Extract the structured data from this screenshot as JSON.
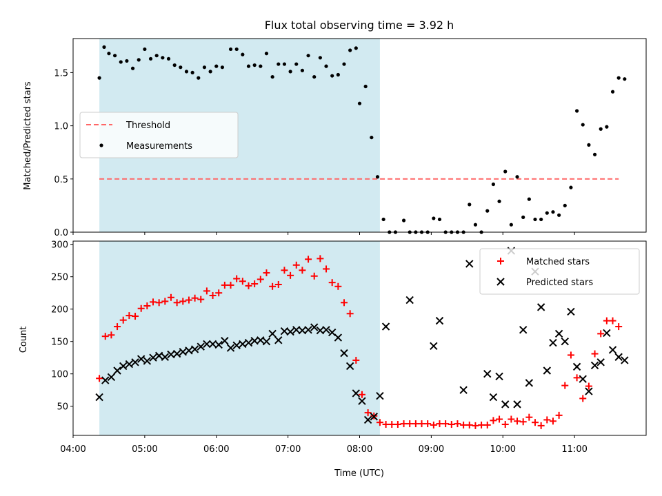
{
  "chart_data": [
    {
      "type": "scatter",
      "title": "Flux total observing time = 3.92 h",
      "ylabel": "Matched/Predicted stars",
      "ylim": [
        0,
        1.82
      ],
      "yticks": [
        "0.0",
        "0.5",
        "1.0",
        "1.5"
      ],
      "xlim": [
        "04:00",
        "12:00"
      ],
      "shaded_interval": [
        "04:22",
        "08:17"
      ],
      "shaded_color": "#add8e6",
      "legend_position": "center-left",
      "threshold": {
        "name": "Threshold",
        "value": 0.5,
        "x_range": [
          "04:22",
          "11:37"
        ],
        "color": "#ff6666",
        "style": "dashed"
      },
      "series": [
        {
          "name": "Measurements",
          "color": "#000000",
          "marker": "dot",
          "points": [
            [
              "04:22",
              1.45
            ],
            [
              "04:26",
              1.74
            ],
            [
              "04:30",
              1.68
            ],
            [
              "04:35",
              1.66
            ],
            [
              "04:40",
              1.6
            ],
            [
              "04:45",
              1.61
            ],
            [
              "04:50",
              1.54
            ],
            [
              "04:55",
              1.62
            ],
            [
              "05:00",
              1.72
            ],
            [
              "05:05",
              1.63
            ],
            [
              "05:10",
              1.66
            ],
            [
              "05:15",
              1.64
            ],
            [
              "05:20",
              1.63
            ],
            [
              "05:25",
              1.57
            ],
            [
              "05:30",
              1.55
            ],
            [
              "05:35",
              1.51
            ],
            [
              "05:40",
              1.5
            ],
            [
              "05:45",
              1.45
            ],
            [
              "05:50",
              1.55
            ],
            [
              "05:55",
              1.51
            ],
            [
              "06:00",
              1.56
            ],
            [
              "06:05",
              1.55
            ],
            [
              "06:12",
              1.72
            ],
            [
              "06:17",
              1.72
            ],
            [
              "06:22",
              1.67
            ],
            [
              "06:27",
              1.56
            ],
            [
              "06:32",
              1.57
            ],
            [
              "06:37",
              1.56
            ],
            [
              "06:42",
              1.68
            ],
            [
              "06:47",
              1.46
            ],
            [
              "06:52",
              1.58
            ],
            [
              "06:57",
              1.58
            ],
            [
              "07:02",
              1.51
            ],
            [
              "07:07",
              1.58
            ],
            [
              "07:12",
              1.52
            ],
            [
              "07:17",
              1.66
            ],
            [
              "07:22",
              1.46
            ],
            [
              "07:27",
              1.64
            ],
            [
              "07:32",
              1.56
            ],
            [
              "07:37",
              1.47
            ],
            [
              "07:42",
              1.48
            ],
            [
              "07:47",
              1.58
            ],
            [
              "07:52",
              1.71
            ],
            [
              "07:57",
              1.73
            ],
            [
              "08:00",
              1.21
            ],
            [
              "08:05",
              1.37
            ],
            [
              "08:10",
              0.89
            ],
            [
              "08:15",
              0.52
            ],
            [
              "08:20",
              0.12
            ],
            [
              "08:25",
              0.0
            ],
            [
              "08:30",
              0.0
            ],
            [
              "08:37",
              0.11
            ],
            [
              "08:42",
              0.0
            ],
            [
              "08:47",
              0.0
            ],
            [
              "08:52",
              0.0
            ],
            [
              "08:57",
              0.0
            ],
            [
              "09:02",
              0.13
            ],
            [
              "09:07",
              0.12
            ],
            [
              "09:12",
              0.0
            ],
            [
              "09:17",
              0.0
            ],
            [
              "09:22",
              0.0
            ],
            [
              "09:27",
              0.0
            ],
            [
              "09:32",
              0.26
            ],
            [
              "09:37",
              0.07
            ],
            [
              "09:42",
              0.0
            ],
            [
              "09:47",
              0.2
            ],
            [
              "09:52",
              0.45
            ],
            [
              "09:57",
              0.29
            ],
            [
              "10:02",
              0.57
            ],
            [
              "10:07",
              0.07
            ],
            [
              "10:12",
              0.52
            ],
            [
              "10:17",
              0.14
            ],
            [
              "10:22",
              0.31
            ],
            [
              "10:27",
              0.12
            ],
            [
              "10:32",
              0.12
            ],
            [
              "10:37",
              0.18
            ],
            [
              "10:42",
              0.19
            ],
            [
              "10:47",
              0.16
            ],
            [
              "10:52",
              0.25
            ],
            [
              "10:57",
              0.42
            ],
            [
              "11:02",
              1.14
            ],
            [
              "11:07",
              1.01
            ],
            [
              "11:12",
              0.82
            ],
            [
              "11:17",
              0.73
            ],
            [
              "11:22",
              0.97
            ],
            [
              "11:27",
              0.99
            ],
            [
              "11:32",
              1.32
            ],
            [
              "11:37",
              1.45
            ],
            [
              "11:42",
              1.44
            ]
          ]
        }
      ]
    },
    {
      "type": "scatter",
      "xlabel": "Time (UTC)",
      "ylabel": "Count",
      "ylim": [
        5,
        305
      ],
      "yticks": [
        "50",
        "100",
        "150",
        "200",
        "250",
        "300"
      ],
      "xlim": [
        "04:00",
        "12:00"
      ],
      "xticks": [
        "04:00",
        "05:00",
        "06:00",
        "07:00",
        "08:00",
        "09:00",
        "10:00",
        "11:00"
      ],
      "shaded_interval": [
        "04:22",
        "08:17"
      ],
      "shaded_color": "#add8e6",
      "legend_position": "upper right",
      "series": [
        {
          "name": "Matched stars",
          "color": "#ff0000",
          "marker": "plus",
          "points": [
            [
              "04:22",
              93
            ],
            [
              "04:27",
              158
            ],
            [
              "04:32",
              160
            ],
            [
              "04:37",
              173
            ],
            [
              "04:42",
              183
            ],
            [
              "04:47",
              190
            ],
            [
              "04:52",
              189
            ],
            [
              "04:57",
              201
            ],
            [
              "05:02",
              205
            ],
            [
              "05:07",
              211
            ],
            [
              "05:12",
              210
            ],
            [
              "05:17",
              212
            ],
            [
              "05:22",
              218
            ],
            [
              "05:27",
              210
            ],
            [
              "05:32",
              212
            ],
            [
              "05:37",
              214
            ],
            [
              "05:42",
              217
            ],
            [
              "05:47",
              215
            ],
            [
              "05:52",
              228
            ],
            [
              "05:57",
              221
            ],
            [
              "06:02",
              225
            ],
            [
              "06:07",
              237
            ],
            [
              "06:12",
              237
            ],
            [
              "06:17",
              247
            ],
            [
              "06:22",
              243
            ],
            [
              "06:27",
              236
            ],
            [
              "06:32",
              239
            ],
            [
              "06:37",
              246
            ],
            [
              "06:42",
              256
            ],
            [
              "06:47",
              235
            ],
            [
              "06:52",
              238
            ],
            [
              "06:57",
              260
            ],
            [
              "07:02",
              252
            ],
            [
              "07:07",
              268
            ],
            [
              "07:12",
              260
            ],
            [
              "07:17",
              277
            ],
            [
              "07:22",
              251
            ],
            [
              "07:27",
              278
            ],
            [
              "07:32",
              262
            ],
            [
              "07:37",
              241
            ],
            [
              "07:42",
              235
            ],
            [
              "07:47",
              210
            ],
            [
              "07:52",
              193
            ],
            [
              "07:57",
              121
            ],
            [
              "08:02",
              68
            ],
            [
              "08:07",
              40
            ],
            [
              "08:12",
              35
            ],
            [
              "08:17",
              25
            ],
            [
              "08:22",
              22
            ],
            [
              "08:27",
              22
            ],
            [
              "08:32",
              22
            ],
            [
              "08:37",
              23
            ],
            [
              "08:42",
              23
            ],
            [
              "08:47",
              23
            ],
            [
              "08:52",
              23
            ],
            [
              "08:57",
              23
            ],
            [
              "09:02",
              21
            ],
            [
              "09:07",
              23
            ],
            [
              "09:12",
              23
            ],
            [
              "09:17",
              22
            ],
            [
              "09:22",
              23
            ],
            [
              "09:27",
              21
            ],
            [
              "09:32",
              21
            ],
            [
              "09:37",
              20
            ],
            [
              "09:42",
              21
            ],
            [
              "09:47",
              21
            ],
            [
              "09:52",
              28
            ],
            [
              "09:57",
              30
            ],
            [
              "10:02",
              22
            ],
            [
              "10:07",
              30
            ],
            [
              "10:12",
              27
            ],
            [
              "10:17",
              26
            ],
            [
              "10:22",
              33
            ],
            [
              "10:27",
              25
            ],
            [
              "10:32",
              20
            ],
            [
              "10:37",
              29
            ],
            [
              "10:42",
              27
            ],
            [
              "10:47",
              36
            ],
            [
              "10:52",
              82
            ],
            [
              "10:57",
              129
            ],
            [
              "11:02",
              94
            ],
            [
              "11:07",
              62
            ],
            [
              "11:12",
              81
            ],
            [
              "11:17",
              131
            ],
            [
              "11:22",
              162
            ],
            [
              "11:27",
              182
            ],
            [
              "11:32",
              182
            ],
            [
              "11:37",
              173
            ]
          ]
        },
        {
          "name": "Predicted stars",
          "color": "#000000",
          "marker": "x",
          "points": [
            [
              "04:22",
              64
            ],
            [
              "04:27",
              90
            ],
            [
              "04:32",
              95
            ],
            [
              "04:37",
              105
            ],
            [
              "04:42",
              112
            ],
            [
              "04:47",
              115
            ],
            [
              "04:52",
              118
            ],
            [
              "04:57",
              123
            ],
            [
              "05:02",
              120
            ],
            [
              "05:07",
              125
            ],
            [
              "05:12",
              128
            ],
            [
              "05:17",
              126
            ],
            [
              "05:22",
              130
            ],
            [
              "05:27",
              131
            ],
            [
              "05:32",
              134
            ],
            [
              "05:37",
              136
            ],
            [
              "05:42",
              138
            ],
            [
              "05:47",
              142
            ],
            [
              "05:52",
              146
            ],
            [
              "05:57",
              146
            ],
            [
              "06:02",
              145
            ],
            [
              "06:07",
              151
            ],
            [
              "06:12",
              140
            ],
            [
              "06:17",
              144
            ],
            [
              "06:22",
              146
            ],
            [
              "06:27",
              148
            ],
            [
              "06:32",
              151
            ],
            [
              "06:37",
              152
            ],
            [
              "06:42",
              150
            ],
            [
              "06:47",
              162
            ],
            [
              "06:52",
              152
            ],
            [
              "06:57",
              166
            ],
            [
              "07:02",
              165
            ],
            [
              "07:07",
              168
            ],
            [
              "07:12",
              167
            ],
            [
              "07:17",
              168
            ],
            [
              "07:22",
              172
            ],
            [
              "07:27",
              167
            ],
            [
              "07:32",
              168
            ],
            [
              "07:37",
              164
            ],
            [
              "07:42",
              156
            ],
            [
              "07:47",
              132
            ],
            [
              "07:52",
              112
            ],
            [
              "07:57",
              70
            ],
            [
              "08:02",
              58
            ],
            [
              "08:07",
              29
            ],
            [
              "08:12",
              34
            ],
            [
              "08:17",
              66
            ],
            [
              "08:22",
              173
            ],
            [
              "08:42",
              214
            ],
            [
              "09:02",
              143
            ],
            [
              "09:07",
              182
            ],
            [
              "09:27",
              75
            ],
            [
              "09:32",
              270
            ],
            [
              "09:47",
              100
            ],
            [
              "09:52",
              64
            ],
            [
              "09:57",
              96
            ],
            [
              "10:02",
              53
            ],
            [
              "10:07",
              290
            ],
            [
              "10:12",
              53
            ],
            [
              "10:17",
              168
            ],
            [
              "10:22",
              86
            ],
            [
              "10:27",
              258
            ],
            [
              "10:32",
              203
            ],
            [
              "10:37",
              105
            ],
            [
              "10:42",
              148
            ],
            [
              "10:47",
              162
            ],
            [
              "10:52",
              150
            ],
            [
              "10:57",
              196
            ],
            [
              "11:02",
              111
            ],
            [
              "11:07",
              92
            ],
            [
              "11:12",
              73
            ],
            [
              "11:17",
              113
            ],
            [
              "11:22",
              118
            ],
            [
              "11:27",
              163
            ],
            [
              "11:32",
              137
            ],
            [
              "11:37",
              126
            ],
            [
              "11:42",
              121
            ]
          ]
        }
      ]
    }
  ]
}
